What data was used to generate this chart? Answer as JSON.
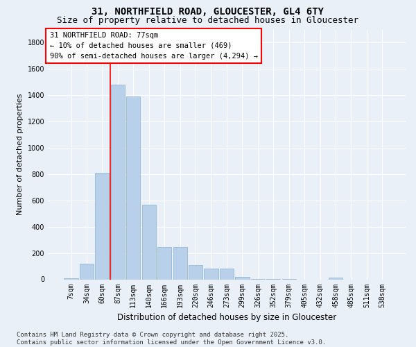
{
  "title": "31, NORTHFIELD ROAD, GLOUCESTER, GL4 6TY",
  "subtitle": "Size of property relative to detached houses in Gloucester",
  "xlabel": "Distribution of detached houses by size in Gloucester",
  "ylabel": "Number of detached properties",
  "categories": [
    "7sqm",
    "34sqm",
    "60sqm",
    "87sqm",
    "113sqm",
    "140sqm",
    "166sqm",
    "193sqm",
    "220sqm",
    "246sqm",
    "273sqm",
    "299sqm",
    "326sqm",
    "352sqm",
    "379sqm",
    "405sqm",
    "432sqm",
    "458sqm",
    "485sqm",
    "511sqm",
    "538sqm"
  ],
  "values": [
    10,
    120,
    810,
    1480,
    1390,
    570,
    245,
    245,
    110,
    80,
    80,
    20,
    5,
    5,
    5,
    0,
    0,
    15,
    0,
    0,
    0
  ],
  "bar_color": "#b8d0ea",
  "bar_edge_color": "#8ab0d4",
  "vline_color": "red",
  "vline_x_index": 2.5,
  "annotation_text": "31 NORTHFIELD ROAD: 77sqm\n← 10% of detached houses are smaller (469)\n90% of semi-detached houses are larger (4,294) →",
  "annotation_box_color": "white",
  "annotation_box_edge_color": "red",
  "ylim": [
    0,
    1900
  ],
  "yticks": [
    0,
    200,
    400,
    600,
    800,
    1000,
    1200,
    1400,
    1600,
    1800
  ],
  "background_color": "#eaf0f8",
  "grid_color": "#ffffff",
  "footer_text": "Contains HM Land Registry data © Crown copyright and database right 2025.\nContains public sector information licensed under the Open Government Licence v3.0.",
  "title_fontsize": 10,
  "subtitle_fontsize": 9,
  "xlabel_fontsize": 8.5,
  "ylabel_fontsize": 8,
  "tick_fontsize": 7,
  "annotation_fontsize": 7.5,
  "footer_fontsize": 6.5
}
